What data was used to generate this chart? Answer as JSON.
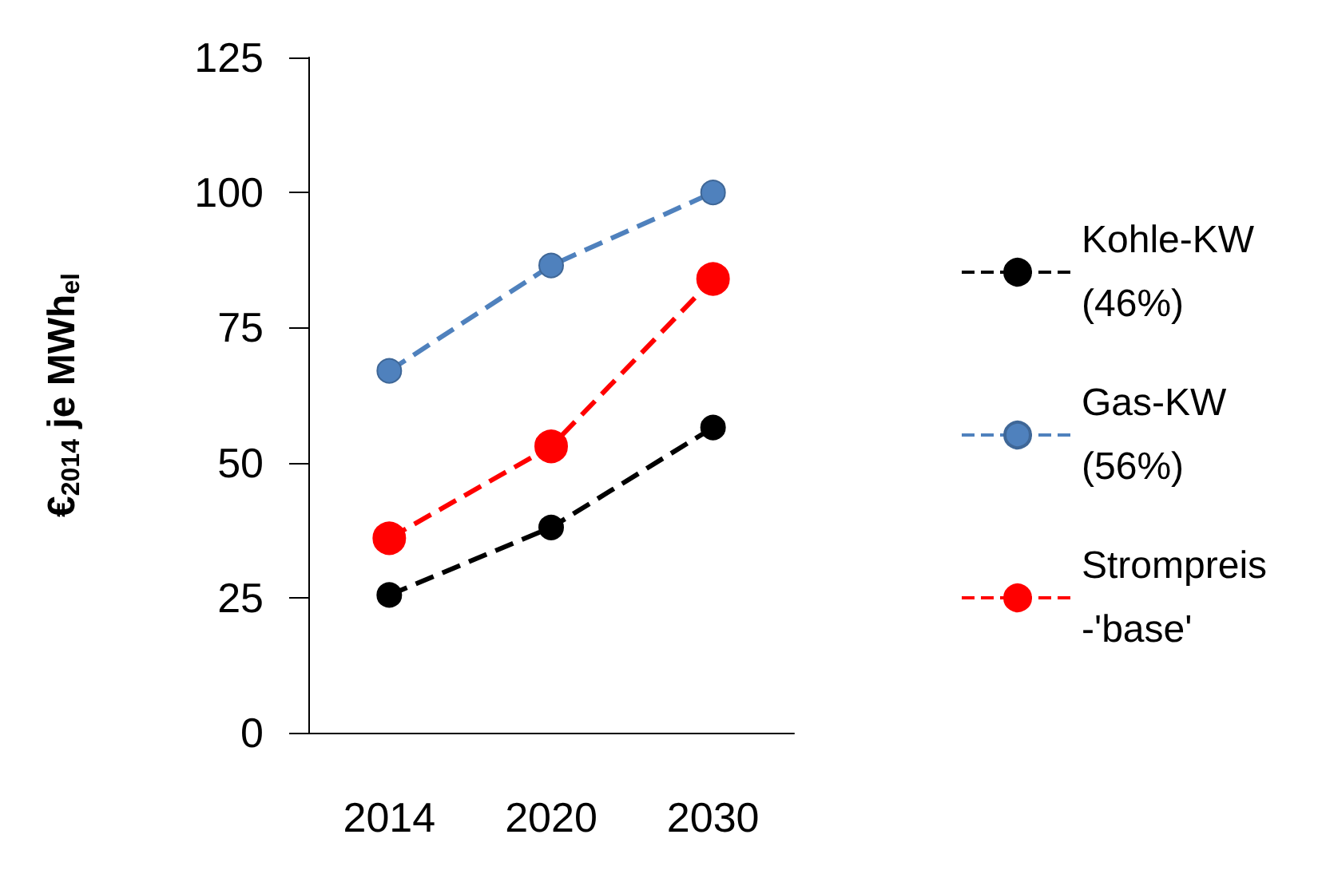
{
  "chart_data": {
    "type": "line",
    "ylabel": "€$_{2014}$ je MWh$_{el}$",
    "categories": [
      "2014",
      "2020",
      "2030"
    ],
    "series": [
      {
        "name": "Kohle-KW (46%)",
        "color": "#000000",
        "values": [
          25.5,
          38,
          56.5
        ]
      },
      {
        "name": "Gas-KW (56%)",
        "color": "#4f81bd",
        "values": [
          67,
          86.5,
          100
        ]
      },
      {
        "name": "Strompreis -'base'",
        "color": "#ff0000",
        "values": [
          36,
          53,
          84
        ]
      }
    ],
    "ylim": [
      0,
      125
    ],
    "yticks": [
      0,
      25,
      50,
      75,
      100,
      125
    ],
    "grid": false,
    "legend": "right",
    "marker": "circle",
    "line_style": "dashed"
  }
}
